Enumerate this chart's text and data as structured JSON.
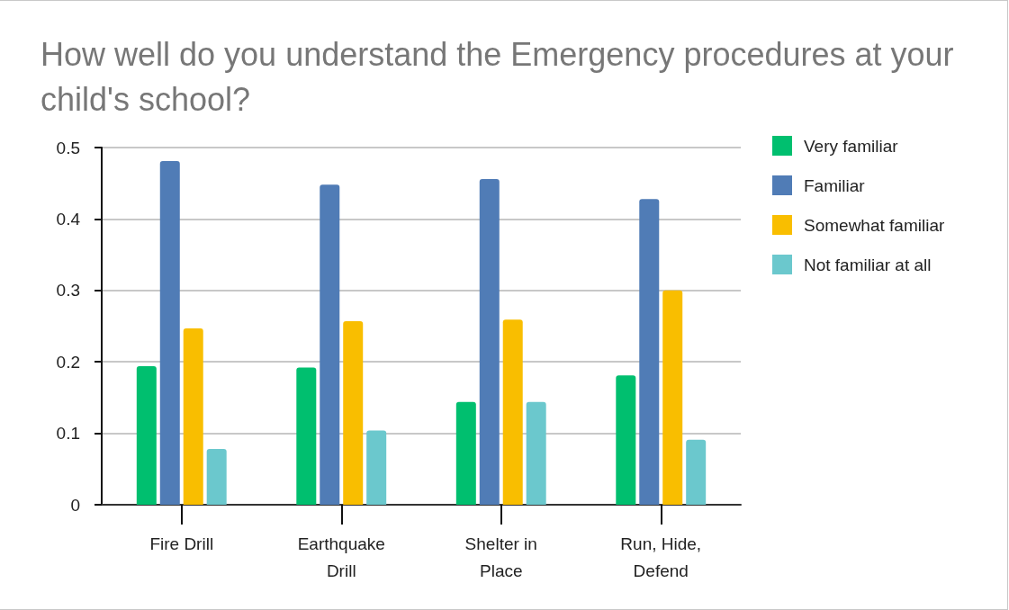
{
  "chart_data": {
    "type": "bar",
    "title": "How well do you understand the Emergency procedures at your child's school?",
    "categories": [
      "Fire Drill",
      "Earthquake\nDrill",
      "Shelter in\nPlace",
      "Run, Hide,\nDefend"
    ],
    "series": [
      {
        "name": "Very familiar",
        "color": "#00bf6f",
        "values": [
          0.194,
          0.192,
          0.144,
          0.181
        ]
      },
      {
        "name": "Familiar",
        "color": "#507cb6",
        "values": [
          0.481,
          0.448,
          0.456,
          0.428
        ]
      },
      {
        "name": "Somewhat familiar",
        "color": "#f9be00",
        "values": [
          0.247,
          0.257,
          0.259,
          0.3
        ]
      },
      {
        "name": "Not familiar at all",
        "color": "#6bc8cd",
        "values": [
          0.078,
          0.104,
          0.144,
          0.091
        ]
      }
    ],
    "ylim": [
      0,
      0.5
    ],
    "yticks": [
      0,
      0.1,
      0.2,
      0.3,
      0.4,
      0.5
    ],
    "grid": "y",
    "legend": "top right"
  }
}
